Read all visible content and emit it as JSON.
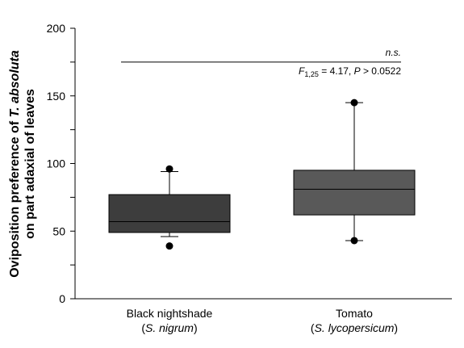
{
  "chart_data": {
    "type": "boxplot",
    "y_axis": {
      "label_line1_prefix": "Oviposition preference of ",
      "label_line1_species": "T. absoluta",
      "label_line2": "on part adaxial of leaves",
      "ylim": [
        0,
        200
      ],
      "major_ticks": [
        0,
        50,
        100,
        150,
        200
      ],
      "minor_step": 25
    },
    "categories": [
      {
        "label": "Black nightshade",
        "sublabel": "S. nigrum"
      },
      {
        "label": "Tomato",
        "sublabel": "S. lycopersicum"
      }
    ],
    "boxes": [
      {
        "whisker_low": 46,
        "q1": 49,
        "median": 57,
        "q3": 77,
        "whisker_high": 94,
        "outliers": [
          39,
          96
        ],
        "color": "#3d3d3d"
      },
      {
        "whisker_low": 43,
        "q1": 62,
        "median": 81,
        "q3": 95,
        "whisker_high": 145,
        "outliers": [
          43,
          145
        ],
        "color": "#595959"
      }
    ],
    "annotation": {
      "significance": "n.s.",
      "stat_F": "F",
      "stat_df": "1,25",
      "stat_eq": " = 4.17, ",
      "stat_P": "P",
      "stat_rest": " > 0.0522",
      "bar_y": 175
    },
    "grid": false
  }
}
